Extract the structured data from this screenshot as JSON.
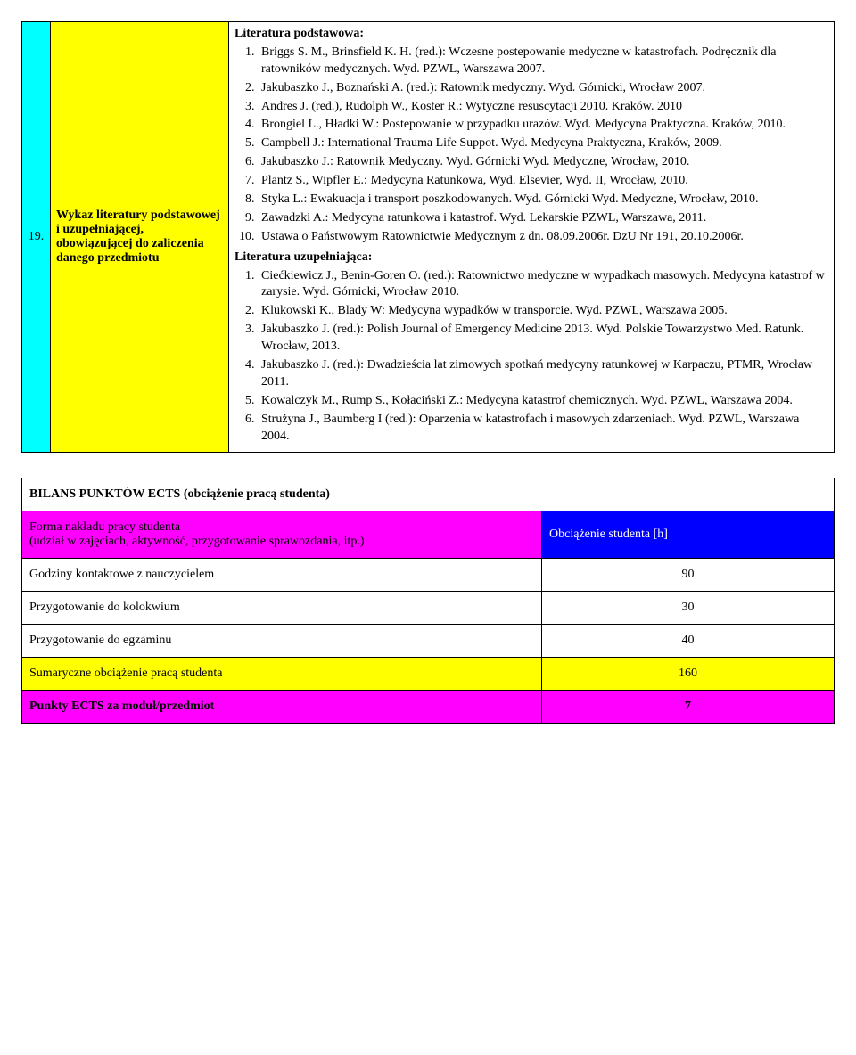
{
  "row19": {
    "num": "19.",
    "label": "Wykaz literatury podstawowej i uzupełniającej, obowiązującej do zaliczenia danego przedmiotu",
    "heading_primary": "Literatura podstawowa:",
    "primary": [
      "Briggs S. M., Brinsfield K. H. (red.): Wczesne postepowanie medyczne w katastrofach. Podręcznik dla ratowników medycznych. Wyd. PZWL, Warszawa 2007.",
      "Jakubaszko J., Boznański A. (red.): Ratownik medyczny. Wyd. Górnicki, Wrocław 2007.",
      "Andres J. (red.), Rudolph W., Koster R.: Wytyczne resuscytacji 2010. Kraków. 2010",
      "Brongiel L., Hładki W.: Postepowanie w przypadku urazów. Wyd. Medycyna Praktyczna. Kraków, 2010.",
      "Campbell J.: International Trauma Life Suppot. Wyd. Medycyna Praktyczna, Kraków, 2009.",
      "Jakubaszko J.: Ratownik Medyczny. Wyd. Górnicki Wyd. Medyczne, Wrocław, 2010.",
      "Plantz S., Wipfler E.: Medycyna Ratunkowa, Wyd. Elsevier, Wyd. II, Wrocław, 2010.",
      "Styka L.: Ewakuacja i transport poszkodowanych. Wyd. Górnicki Wyd. Medyczne, Wrocław, 2010.",
      "Zawadzki A.: Medycyna ratunkowa i katastrof. Wyd. Lekarskie PZWL, Warszawa, 2011.",
      "Ustawa o Państwowym Ratownictwie Medycznym z dn. 08.09.2006r. DzU Nr 191, 20.10.2006r."
    ],
    "heading_secondary": "Literatura uzupełniająca:",
    "secondary": [
      "Ciećkiewicz J., Benin-Goren O. (red.): Ratownictwo medyczne w wypadkach masowych. Medycyna katastrof w zarysie. Wyd. Górnicki, Wrocław 2010.",
      "Klukowski K., Blady W: Medycyna wypadków w transporcie. Wyd. PZWL, Warszawa 2005.",
      "Jakubaszko J. (red.): Polish Journal of Emergency Medicine 2013. Wyd. Polskie Towarzystwo Med. Ratunk. Wrocław, 2013.",
      "Jakubaszko J. (red.): Dwadzieścia lat zimowych spotkań medycyny ratunkowej w Karpaczu, PTMR, Wrocław 2011.",
      "Kowalczyk M., Rump S., Kołaciński Z.: Medycyna katastrof chemicznych. Wyd. PZWL, Warszawa 2004.",
      "Strużyna J., Baumberg I (red.): Oparzenia w katastrofach i masowych zdarzeniach. Wyd. PZWL, Warszawa 2004."
    ]
  },
  "bilans": {
    "title": "BILANS PUNKTÓW ECTS  (obciążenie pracą studenta)",
    "header_left": "Forma nakładu pracy studenta\n(udział w zajęciach, aktywność, przygotowanie sprawozdania, itp.)",
    "header_right": "Obciążenie studenta [h]",
    "rows": [
      {
        "label": "Godziny kontaktowe z nauczycielem",
        "value": "90"
      },
      {
        "label": "Przygotowanie do kolokwium",
        "value": "30"
      },
      {
        "label": "Przygotowanie do egzaminu",
        "value": "40"
      },
      {
        "label": "Sumaryczne obciążenie pracą studenta",
        "value": "160"
      },
      {
        "label": "Punkty ECTS za moduł/przedmiot",
        "value": "7"
      }
    ]
  }
}
